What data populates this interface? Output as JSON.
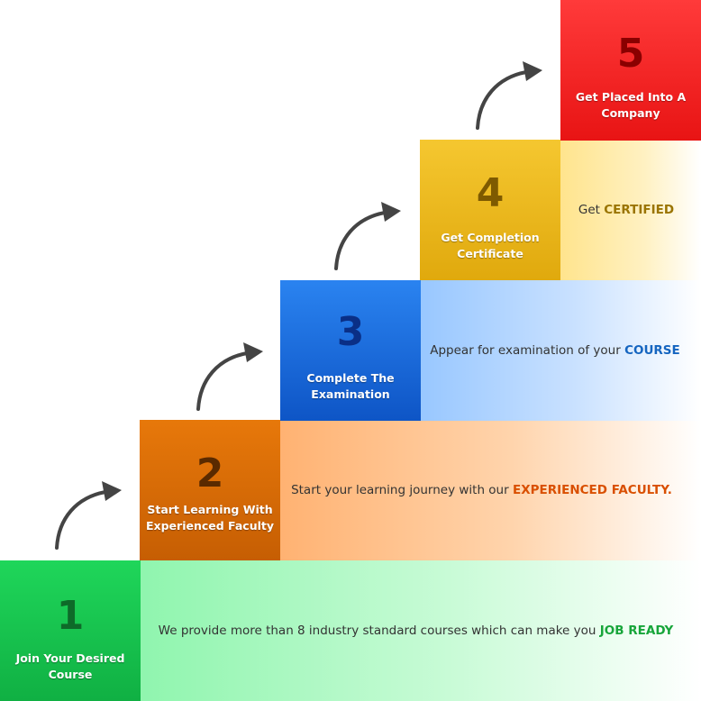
{
  "steps": [
    {
      "number": "1",
      "title": "Join Your Desired Course",
      "desc_prefix": "We provide more than 8 industry standard courses which can make you ",
      "desc_highlight": "JOB READY",
      "highlight_color": "#17a53a"
    },
    {
      "number": "2",
      "title": "Start Learning With Experienced Faculty",
      "desc_prefix": "Start your learning journey with our ",
      "desc_highlight": "EXPERIENCED FACULTY.",
      "highlight_color": "#d94f00"
    },
    {
      "number": "3",
      "title": "Complete The Examination",
      "desc_prefix": "Appear for examination of your ",
      "desc_highlight": "COURSE",
      "highlight_color": "#1565c0"
    },
    {
      "number": "4",
      "title": "Get Completion Certificate",
      "desc_prefix": "Get ",
      "desc_highlight": "CERTIFIED",
      "highlight_color": "#9a7400"
    },
    {
      "number": "5",
      "title": "Get Placed Into A Company"
    }
  ],
  "colors": {
    "green": "#15c04a",
    "orange": "#d66b05",
    "blue": "#1565d8",
    "yellow": "#e8b51a",
    "red": "#f0201f",
    "arrow": "#444444"
  }
}
